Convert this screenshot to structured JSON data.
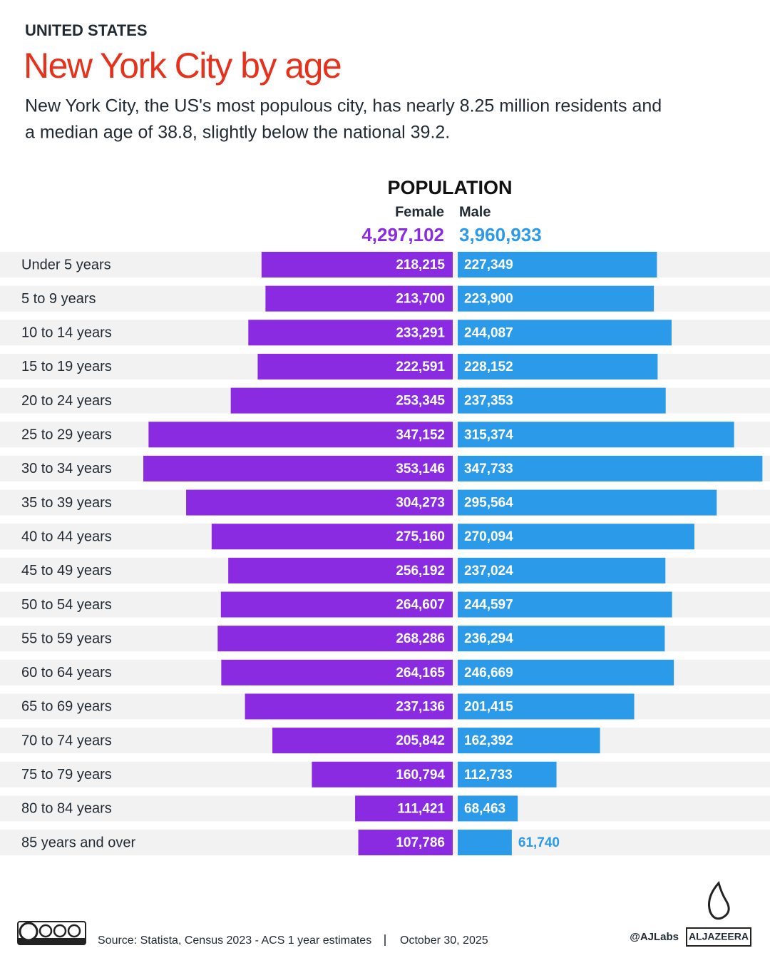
{
  "chart_data": {
    "type": "pyramid",
    "kicker": "UNITED STATES",
    "title": "New York City by age",
    "subtitle": [
      "New York City, the US's most populous city, has nearly 8.25 million residents and",
      "a median age of 38.8, slightly below the national 39.2."
    ],
    "value_axis_label": "POPULATION",
    "categories": [
      "Under 5 years",
      "5 to 9 years",
      "10 to 14 years",
      "15 to 19 years",
      "20 to 24 years",
      "25 to 29 years",
      "30 to 34 years",
      "35 to 39 years",
      "40 to 44 years",
      "45 to 49 years",
      "50 to 54 years",
      "55 to 59 years",
      "60 to 64 years",
      "65 to 69 years",
      "70 to 74 years",
      "75 to 79 years",
      "80 to 84 years",
      "85 years and over"
    ],
    "series": [
      {
        "name": "Female",
        "color": "#8a2be2",
        "total": "4,297,102",
        "values": [
          218215,
          213700,
          233291,
          222591,
          253345,
          347152,
          353146,
          304273,
          275160,
          256192,
          264607,
          268286,
          264165,
          237136,
          205842,
          160794,
          111421,
          107786
        ],
        "value_labels": [
          "218,215",
          "213,700",
          "233,291",
          "222,591",
          "253,345",
          "347,152",
          "353,146",
          "304,273",
          "275,160",
          "256,192",
          "264,607",
          "268,286",
          "264,165",
          "237,136",
          "205,842",
          "160,794",
          "111,421",
          "107,786"
        ]
      },
      {
        "name": "Male",
        "color": "#2b9ae9",
        "total": "3,960,933",
        "values": [
          227349,
          223900,
          244087,
          228152,
          237353,
          315374,
          347733,
          295564,
          270094,
          237024,
          244597,
          236294,
          246669,
          201415,
          162392,
          112733,
          68463,
          61740
        ],
        "value_labels": [
          "227,349",
          "223,900",
          "244,087",
          "228,152",
          "237,353",
          "315,374",
          "347,733",
          "295,564",
          "270,094",
          "237,024",
          "244,597",
          "236,294",
          "246,669",
          "201,415",
          "162,392",
          "112,733",
          "68,463",
          "61,740"
        ]
      }
    ],
    "source": "Source: Statista, Census 2023 - ACS 1 year estimates",
    "date": "October 30, 2025",
    "credit": "@AJLabs",
    "brand": "ALJAZEERA"
  }
}
